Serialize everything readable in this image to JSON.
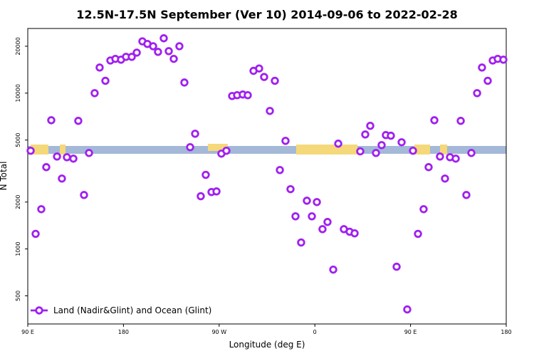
{
  "chart_data": {
    "type": "scatter",
    "title": "12.5N-17.5N September (Ver 10)   2014-09-06 to 2022-02-28",
    "x_label": "Longitude (deg E)",
    "y_label": "N Total",
    "x": [
      92.7,
      97.4,
      102.7,
      107.4,
      112.1,
      117.5,
      122.1,
      126.8,
      132.9,
      137.5,
      142.9,
      147.6,
      152.9,
      157.6,
      163,
      167.7,
      172.4,
      177.7,
      182.4,
      187.8,
      192.5,
      197.8,
      202.5,
      207.9,
      212.5,
      217.9,
      222.6,
      227.3,
      232.6,
      237.3,
      242.7,
      247.4,
      252.7,
      257.4,
      262.8,
      267.5,
      272.1,
      276.8,
      282.2,
      286.9,
      292.2,
      296.9,
      302.3,
      307.6,
      312.3,
      317.7,
      322.4,
      327.1,
      332.4,
      337.1,
      341.8,
      347.1,
      352.5,
      357.2,
      361.9,
      367.2,
      371.9,
      377.3,
      382,
      387.3,
      392.7,
      397.4,
      402.7,
      407.4,
      412.1,
      417.5,
      422.8,
      426.8,
      431.5,
      436.9,
      441.6,
      446.9,
      452.3,
      457,
      462.3,
      467,
      472.4,
      477.7,
      482.4,
      487.1,
      492.5,
      497.2,
      502.5,
      507.2,
      512.6,
      517.2,
      522.6,
      527.3,
      532,
      537.3
    ],
    "series": [
      {
        "name": "Land (Nadir&Glint) and Ocean (Glint)",
        "color": "#a020f0",
        "values": [
          4270,
          1250,
          1800,
          3350,
          6700,
          3920,
          2830,
          3880,
          3800,
          6640,
          2220,
          4130,
          10000,
          14600,
          12000,
          16200,
          16600,
          16400,
          17100,
          17100,
          18200,
          21500,
          20700,
          20000,
          18400,
          22500,
          18600,
          16600,
          20000,
          11700,
          4500,
          5490,
          2180,
          2990,
          2320,
          2340,
          4090,
          4270,
          9590,
          9700,
          9800,
          9700,
          13900,
          14400,
          12700,
          7690,
          12000,
          3210,
          4940,
          2420,
          1620,
          1100,
          2040,
          1620,
          2000,
          1340,
          1490,
          737,
          4740,
          1340,
          1290,
          1260,
          4230,
          5430,
          6170,
          4130,
          4640,
          5380,
          5330,
          769,
          4840,
          409,
          4270,
          1250,
          1800,
          3350,
          6700,
          3920,
          2830,
          3880,
          3800,
          6640,
          2220,
          4130,
          10000,
          14600,
          12000,
          16200,
          16600,
          16400
        ]
      }
    ],
    "xlim": [
      90,
      540
    ],
    "xticks": [
      {
        "value": 90,
        "label": "90 E"
      },
      180,
      {
        "value": 270,
        "label": "90 W"
      },
      {
        "value": 360,
        "label": "0"
      },
      {
        "value": 450,
        "label": "90 E"
      },
      {
        "value": 540,
        "label": "180"
      }
    ],
    "ylim": [
      330,
      26000
    ],
    "yticks": [
      500,
      1000,
      2000,
      5000,
      10000,
      20000
    ],
    "y_log": true,
    "legend": "lower left"
  }
}
